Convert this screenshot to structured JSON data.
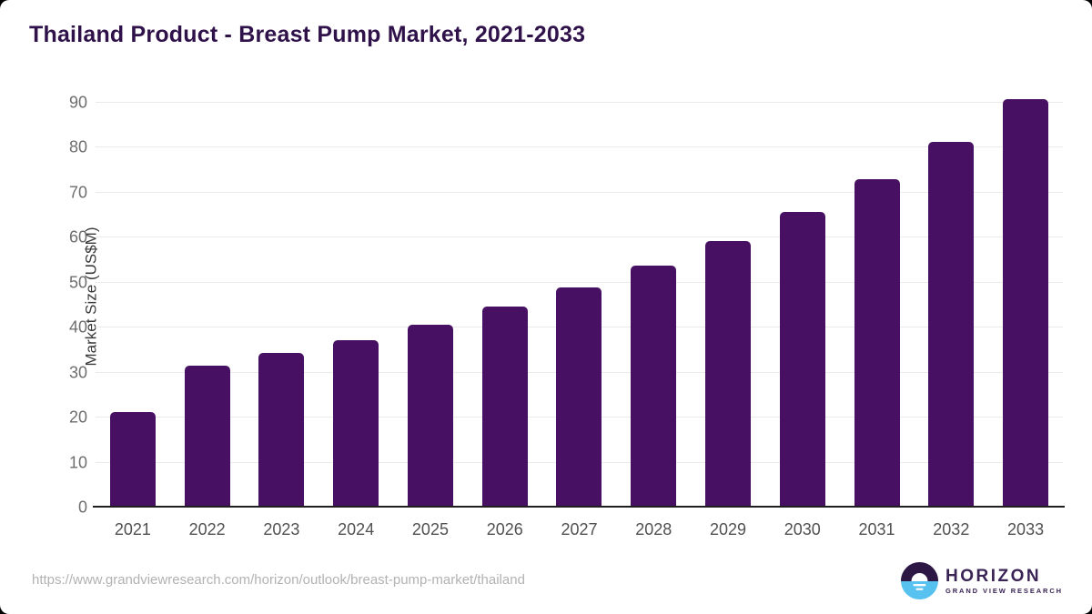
{
  "title": "Thailand Product - Breast Pump Market, 2021-2033",
  "chart_data": {
    "type": "bar",
    "categories": [
      "2021",
      "2022",
      "2023",
      "2024",
      "2025",
      "2026",
      "2027",
      "2028",
      "2029",
      "2030",
      "2031",
      "2032",
      "2033"
    ],
    "values": [
      20.9,
      31.2,
      34.0,
      36.8,
      40.3,
      44.2,
      48.5,
      53.4,
      58.9,
      65.4,
      72.7,
      81.0,
      90.5
    ],
    "title": "Thailand Product - Breast Pump Market, 2021-2033",
    "xlabel": "",
    "ylabel": "Market Size (US$M)",
    "ylim": [
      0,
      90
    ],
    "ytick_step": 10,
    "grid": "horizontal",
    "legend": "none",
    "bar_color": "#471062"
  },
  "footer": {
    "source_url": "https://www.grandviewresearch.com/horizon/outlook/breast-pump-market/thailand",
    "logo": {
      "brand": "HORIZON",
      "sub": "GRAND VIEW RESEARCH",
      "icon": "sunset-circle-icon",
      "purple": "#2d1845",
      "blue": "#57c1f0"
    }
  },
  "colors": {
    "title": "#30124a",
    "bar": "#471062",
    "gridline": "#eaeaea",
    "axis_line": "#1f1f1f",
    "tick_label": "#6e6e6e",
    "x_label": "#515151",
    "url_text": "#b2b2b2"
  }
}
